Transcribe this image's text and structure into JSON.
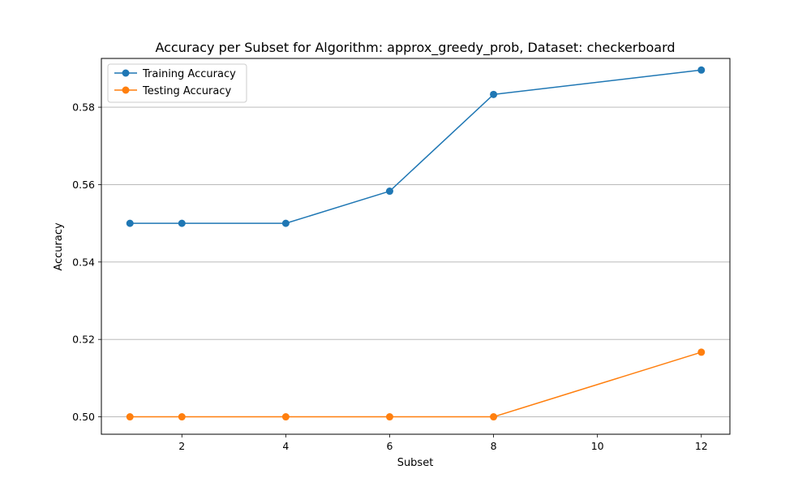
{
  "chart_data": {
    "type": "line",
    "title": "Accuracy per Subset for Algorithm: approx_greedy_prob, Dataset: checkerboard",
    "xlabel": "Subset",
    "ylabel": "Accuracy",
    "x": [
      1,
      2,
      4,
      6,
      8,
      12
    ],
    "series": [
      {
        "name": "Training Accuracy",
        "color": "#1f77b4",
        "values": [
          0.55,
          0.55,
          0.55,
          0.5583,
          0.5833,
          0.5896
        ]
      },
      {
        "name": "Testing Accuracy",
        "color": "#ff7f0e",
        "values": [
          0.5,
          0.5,
          0.5,
          0.5,
          0.5,
          0.5167
        ]
      }
    ],
    "xlim": [
      0.45,
      12.55
    ],
    "ylim": [
      0.4955,
      0.5926
    ],
    "xticks": [
      2,
      4,
      6,
      8,
      10,
      12
    ],
    "xtick_labels": [
      "2",
      "4",
      "6",
      "8",
      "10",
      "12"
    ],
    "yticks": [
      0.5,
      0.52,
      0.54,
      0.56,
      0.58
    ],
    "ytick_labels": [
      "0.50",
      "0.52",
      "0.54",
      "0.56",
      "0.58"
    ],
    "grid": "y-axis horizontal",
    "legend_position": "upper-left"
  }
}
